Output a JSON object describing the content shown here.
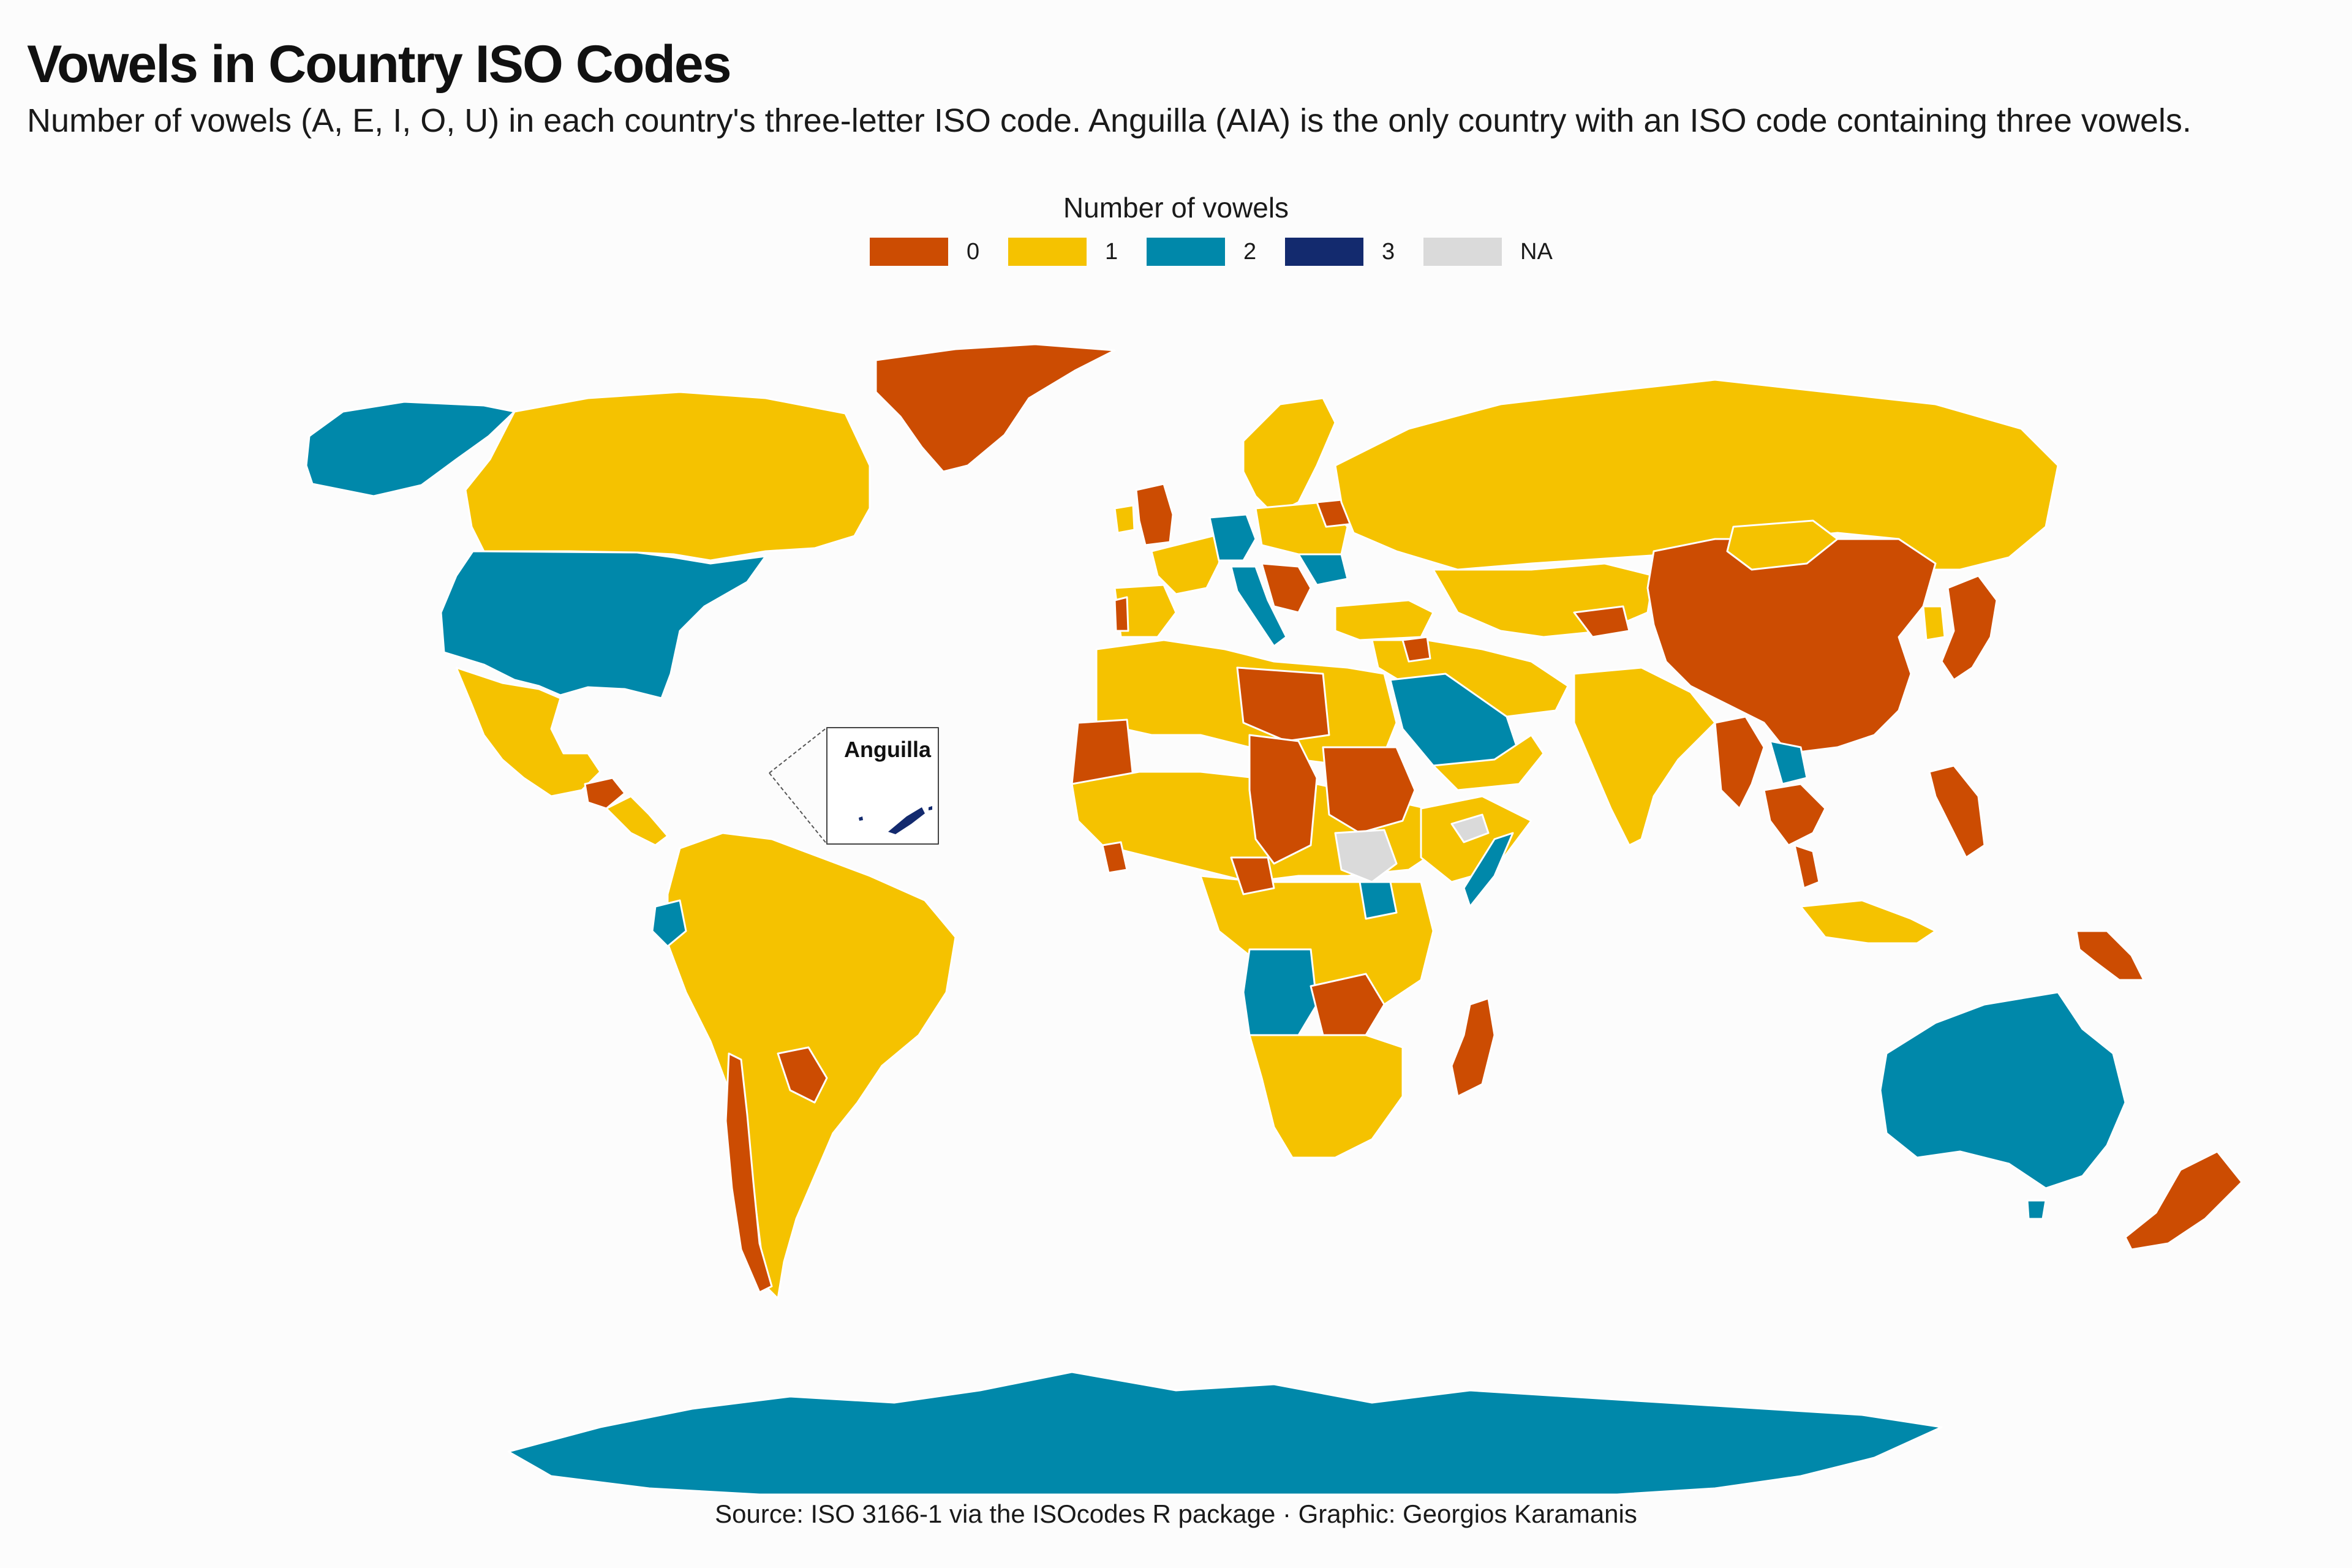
{
  "title": "Vowels in Country ISO Codes",
  "subtitle": "Number of vowels (A, E, I, O, U) in each country's three-letter ISO code. Anguilla (AIA) is the only country with an ISO code containing three vowels.",
  "legend": {
    "title": "Number of vowels",
    "items": [
      {
        "label": "0",
        "color": "#cc4c02"
      },
      {
        "label": "1",
        "color": "#f5c200"
      },
      {
        "label": "2",
        "color": "#0088aa"
      },
      {
        "label": "3",
        "color": "#132a6e"
      },
      {
        "label": "NA",
        "color": "#dadada"
      }
    ]
  },
  "inset": {
    "title": "Anguilla",
    "iso_code": "AIA",
    "vowels": 3
  },
  "caption": "Source: ISO 3166-1 via the ISOcodes R package · Graphic: Georgios Karamanis"
}
